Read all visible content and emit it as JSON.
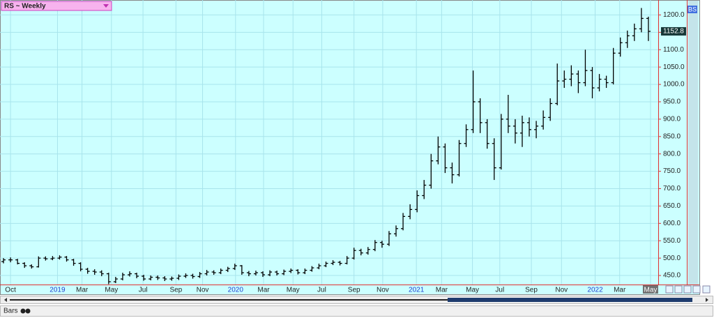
{
  "chart_data": {
    "type": "ohlc",
    "title": "RS ~ Weekly",
    "color": "#000000",
    "grid": true,
    "open": [
      490,
      495,
      495,
      485,
      478,
      475,
      500,
      498,
      500,
      503,
      495,
      485,
      468,
      462,
      460,
      455,
      432,
      440,
      452,
      455,
      448,
      440,
      445,
      443,
      440,
      442,
      448,
      450,
      447,
      455,
      460,
      458,
      465,
      470,
      478,
      458,
      455,
      458,
      452,
      460,
      455,
      462,
      465,
      458,
      465,
      472,
      478,
      485,
      488,
      485,
      500,
      522,
      515,
      525,
      545,
      540,
      570,
      585,
      620,
      640,
      680,
      710,
      780,
      820,
      760,
      740,
      830,
      870,
      950,
      890,
      830,
      760,
      900,
      880,
      860,
      890,
      870,
      880,
      905,
      945,
      1010,
      1015,
      1030,
      1005,
      1040,
      990,
      1015,
      1005,
      1090,
      1120,
      1140,
      1160,
      1190
    ],
    "high": [
      500,
      502,
      498,
      488,
      482,
      505,
      505,
      506,
      508,
      506,
      498,
      488,
      472,
      468,
      465,
      458,
      446,
      458,
      462,
      458,
      452,
      450,
      450,
      448,
      447,
      453,
      456,
      455,
      460,
      466,
      465,
      470,
      475,
      484,
      480,
      463,
      464,
      462,
      465,
      464,
      467,
      470,
      468,
      470,
      477,
      484,
      490,
      494,
      492,
      506,
      530,
      527,
      532,
      552,
      550,
      578,
      594,
      630,
      655,
      695,
      725,
      800,
      850,
      830,
      775,
      840,
      885,
      1040,
      960,
      900,
      845,
      915,
      970,
      900,
      910,
      905,
      895,
      925,
      960,
      1060,
      1040,
      1055,
      1040,
      1100,
      1050,
      1030,
      1025,
      1105,
      1135,
      1155,
      1175,
      1220,
      1195
    ],
    "low": [
      485,
      488,
      482,
      472,
      470,
      473,
      493,
      494,
      496,
      490,
      478,
      462,
      455,
      452,
      448,
      425,
      428,
      436,
      447,
      442,
      435,
      436,
      437,
      434,
      435,
      437,
      443,
      441,
      443,
      450,
      452,
      454,
      460,
      466,
      452,
      448,
      450,
      446,
      448,
      450,
      451,
      457,
      453,
      454,
      461,
      468,
      474,
      480,
      479,
      482,
      496,
      508,
      510,
      520,
      530,
      535,
      562,
      580,
      612,
      632,
      670,
      700,
      770,
      745,
      715,
      735,
      820,
      860,
      860,
      815,
      725,
      755,
      860,
      830,
      820,
      850,
      845,
      870,
      895,
      940,
      990,
      995,
      975,
      995,
      960,
      980,
      990,
      1000,
      1080,
      1105,
      1125,
      1150,
      1125
    ],
    "close": [
      495,
      495,
      485,
      478,
      475,
      500,
      498,
      500,
      503,
      495,
      485,
      468,
      462,
      460,
      455,
      432,
      440,
      452,
      455,
      448,
      440,
      445,
      443,
      440,
      442,
      448,
      450,
      447,
      455,
      460,
      458,
      465,
      470,
      478,
      458,
      455,
      458,
      452,
      460,
      455,
      462,
      465,
      458,
      465,
      472,
      478,
      485,
      488,
      485,
      500,
      522,
      515,
      525,
      545,
      540,
      570,
      585,
      620,
      640,
      680,
      710,
      780,
      820,
      760,
      740,
      830,
      870,
      950,
      890,
      830,
      760,
      900,
      880,
      860,
      890,
      870,
      880,
      905,
      945,
      1010,
      1015,
      1030,
      1005,
      1040,
      990,
      1015,
      1005,
      1090,
      1120,
      1140,
      1160,
      1190,
      1152.8
    ],
    "xlim": [
      -0.5,
      93.4
    ],
    "xticks": [
      {
        "value": 1.0,
        "label": "Oct"
      },
      {
        "value": 7.7,
        "label": "2019"
      },
      {
        "value": 11.2,
        "label": "Mar"
      },
      {
        "value": 15.4,
        "label": "May"
      },
      {
        "value": 19.9,
        "label": "Jul"
      },
      {
        "value": 24.6,
        "label": "Sep"
      },
      {
        "value": 28.4,
        "label": "Nov"
      },
      {
        "value": 33.1,
        "label": "2020"
      },
      {
        "value": 37.1,
        "label": "Mar"
      },
      {
        "value": 41.3,
        "label": "May"
      },
      {
        "value": 45.4,
        "label": "Jul"
      },
      {
        "value": 50.0,
        "label": "Sep"
      },
      {
        "value": 54.1,
        "label": "Nov"
      },
      {
        "value": 58.9,
        "label": "2021"
      },
      {
        "value": 62.5,
        "label": "Mar"
      },
      {
        "value": 66.9,
        "label": "May"
      },
      {
        "value": 70.8,
        "label": "Jul"
      },
      {
        "value": 75.3,
        "label": "Sep"
      },
      {
        "value": 79.6,
        "label": "Nov"
      },
      {
        "value": 84.4,
        "label": "2022"
      },
      {
        "value": 87.9,
        "label": "Mar"
      },
      {
        "value": 92.3,
        "label": "May"
      }
    ],
    "ylim": [
      424,
      1243
    ],
    "yticks": [
      {
        "value": 450,
        "label": "450.0"
      },
      {
        "value": 500,
        "label": "500.0"
      },
      {
        "value": 550,
        "label": "550.0"
      },
      {
        "value": 600,
        "label": "600.0"
      },
      {
        "value": 650,
        "label": "650.0"
      },
      {
        "value": 700,
        "label": "700.0"
      },
      {
        "value": 750,
        "label": "750.0"
      },
      {
        "value": 800,
        "label": "800.0"
      },
      {
        "value": 850,
        "label": "850.0"
      },
      {
        "value": 900,
        "label": "900.0"
      },
      {
        "value": 950,
        "label": "950.0"
      },
      {
        "value": 1000,
        "label": "1000.0"
      },
      {
        "value": 1050,
        "label": "1050.0"
      },
      {
        "value": 1100,
        "label": "1100.0"
      },
      {
        "value": 1150,
        "label": "1150.0"
      },
      {
        "value": 1200,
        "label": "1200.0"
      }
    ]
  },
  "ui": {
    "badge": "BS",
    "mode": "Bars"
  }
}
